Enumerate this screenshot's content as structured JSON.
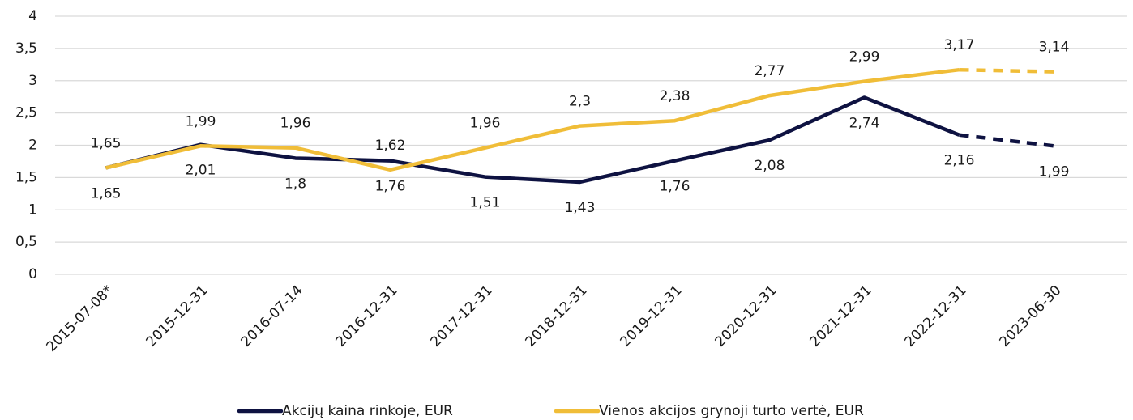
{
  "chart_data": {
    "type": "line",
    "categories": [
      "2015-07-08*",
      "2015-12-31",
      "2016-07-14",
      "2016-12-31",
      "2017-12-31",
      "2018-12-31",
      "2019-12-31",
      "2020-12-31",
      "2021-12-31",
      "2022-12-31",
      "2023-06-30"
    ],
    "series": [
      {
        "name": "Akcijų kaina rinkoje, EUR",
        "color": "#0e1241",
        "label_position": "below",
        "last_segment_dashed": true,
        "values": [
          1.65,
          2.01,
          1.8,
          1.76,
          1.51,
          1.43,
          1.76,
          2.08,
          2.74,
          2.16,
          1.99
        ],
        "value_labels": [
          "1,65",
          "2,01",
          "1,8",
          "1,76",
          "1,51",
          "1,43",
          "1,76",
          "2,08",
          "2,74",
          "2,16",
          "1,99"
        ]
      },
      {
        "name": "Vienos akcijos grynoji turto vertė, EUR",
        "color": "#f0bd38",
        "label_position": "above",
        "last_segment_dashed": true,
        "values": [
          1.65,
          1.99,
          1.96,
          1.62,
          1.96,
          2.3,
          2.38,
          2.77,
          2.99,
          3.17,
          3.14
        ],
        "value_labels": [
          "1,65",
          "1,99",
          "1,96",
          "1,62",
          "1,96",
          "2,3",
          "2,38",
          "2,77",
          "2,99",
          "3,17",
          "3,14"
        ]
      }
    ],
    "ylim": [
      0,
      4
    ],
    "yticks": [
      0,
      {
        "value": 0.5,
        "label": "0,5"
      },
      1,
      {
        "value": 1.5,
        "label": "1,5"
      },
      2,
      {
        "value": 2.5,
        "label": "2,5"
      },
      3,
      {
        "value": 3.5,
        "label": "3,5"
      },
      4
    ],
    "grid": true,
    "legend": "bottom"
  }
}
